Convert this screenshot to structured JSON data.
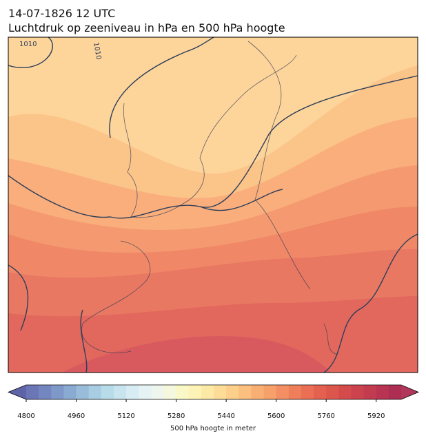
{
  "header": {
    "date": "14-07-1826 12 UTC",
    "title": "Luchtdruk op zeeniveau in hPa en 500 hPa hoogte"
  },
  "map": {
    "contour_labels": [
      "1010",
      "1010"
    ]
  },
  "colorbar": {
    "label": "500 hPa hoogte in meter",
    "range": [
      4800,
      6000
    ],
    "ticks": [
      4800,
      4960,
      5120,
      5280,
      5440,
      5600,
      5760,
      5920
    ],
    "colors": [
      "#6b76b6",
      "#7486c0",
      "#7e98c9",
      "#8aaad2",
      "#98bcd9",
      "#a8cde2",
      "#b8dbe9",
      "#c8e5ef",
      "#d8edf3",
      "#e5f3f5",
      "#eef6ee",
      "#f5f8dc",
      "#fbf8c8",
      "#fdf3b6",
      "#fde9a6",
      "#fddc97",
      "#fccf8b",
      "#fbbf7f",
      "#f9af73",
      "#f6a06a",
      "#f38f63",
      "#ef7e5b",
      "#ea6f55",
      "#e4614f",
      "#dd564c",
      "#d54b4b",
      "#cc434d",
      "#c23b4f",
      "#b83452",
      "#ad2e52"
    ],
    "under_color": "#5f64a8",
    "over_color": "#b0375a"
  }
}
